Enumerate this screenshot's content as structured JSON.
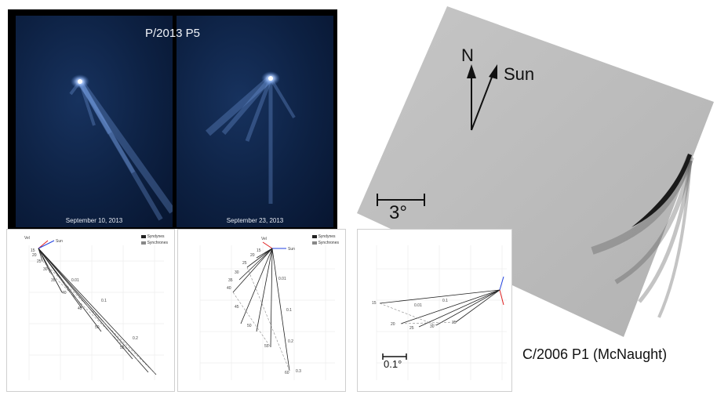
{
  "hubble": {
    "title": "P/2013 P5",
    "frames": [
      {
        "date": "September 10, 2013"
      },
      {
        "date": "September 23, 2013"
      }
    ]
  },
  "mcnaught": {
    "north_label": "N",
    "sun_label": "Sun",
    "scale_label": "3°",
    "name": "C/2006 P1 (McNaught)"
  },
  "plots": {
    "legend": [
      "Syndynes",
      "Synchrones"
    ],
    "inset_scale_label": "0.1°",
    "plot1_labels": [
      "Vel",
      "Sun",
      "15",
      "20",
      "25",
      "30",
      "35",
      "40",
      "45",
      "50",
      "55",
      "0.01",
      "0.1",
      "0.2"
    ],
    "plot2_labels": [
      "Vel",
      "Sun",
      "15",
      "20",
      "25",
      "30",
      "35",
      "40",
      "45",
      "50",
      "55",
      "60",
      "0.01",
      "0.1",
      "0.2",
      "0.3"
    ],
    "plot3_labels": [
      "15",
      "20",
      "25",
      "30",
      "35",
      "0.01",
      "0.1"
    ]
  },
  "colors": {
    "vel_line": "#e02020",
    "sun_line": "#2040e0",
    "syndyne": "#222222",
    "synchrone": "#888888"
  }
}
